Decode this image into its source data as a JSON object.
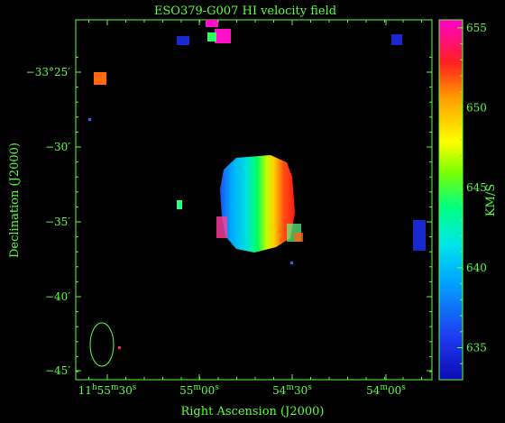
{
  "chart_data": {
    "type": "heatmap",
    "title": "ESO379-G007  HI velocity field",
    "xlabel": "Right Ascension (J2000)",
    "ylabel": "Declination (J2000)",
    "colorbar_label": "KM/S",
    "colorbar_range": [
      633,
      655.5
    ],
    "colorbar_ticks": [
      "635",
      "640",
      "645",
      "650",
      "655"
    ],
    "x_ticks": [
      {
        "h": "11",
        "m": "55",
        "s": "30"
      },
      {
        "h": "",
        "m": "55",
        "s": "00"
      },
      {
        "h": "",
        "m": "54",
        "s": "30"
      },
      {
        "h": "",
        "m": "54",
        "s": "00"
      }
    ],
    "y_ticks": [
      "−33°25′",
      "−30′",
      "−35′",
      "−40′",
      "−45′"
    ],
    "galaxy": {
      "velocity_min": 636,
      "velocity_max": 655,
      "gradient": "increasing toward lower RA (west)"
    },
    "colors": {
      "axis": "#5cff3c",
      "background": "#000000"
    }
  }
}
